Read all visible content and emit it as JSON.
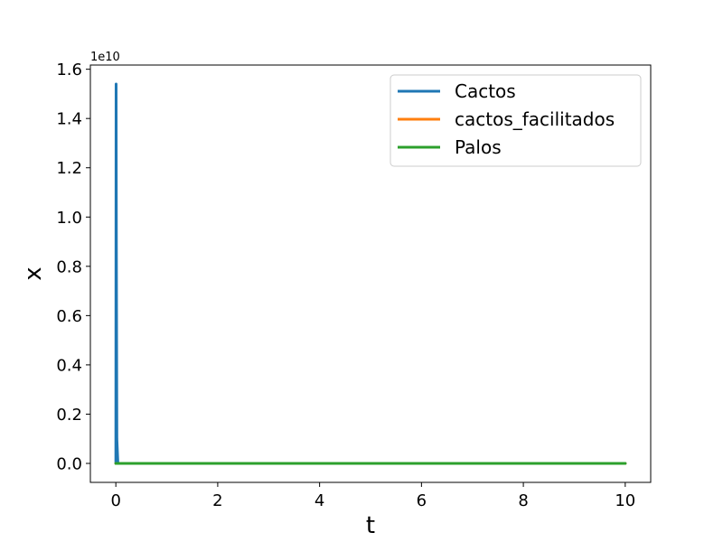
{
  "chart_data": {
    "type": "line",
    "xlabel": "t",
    "ylabel": "x",
    "y_offset_label": "1e10",
    "xlim": [
      -0.5,
      10.5
    ],
    "ylim": [
      -0.077,
      1.617
    ],
    "x_ticks": [
      {
        "value": 0,
        "label": "0"
      },
      {
        "value": 2,
        "label": "2"
      },
      {
        "value": 4,
        "label": "4"
      },
      {
        "value": 6,
        "label": "6"
      },
      {
        "value": 8,
        "label": "8"
      },
      {
        "value": 10,
        "label": "10"
      }
    ],
    "y_ticks": [
      {
        "value": 0.0,
        "label": "0.0"
      },
      {
        "value": 0.2,
        "label": "0.2"
      },
      {
        "value": 0.4,
        "label": "0.4"
      },
      {
        "value": 0.6,
        "label": "0.6"
      },
      {
        "value": 0.8,
        "label": "0.8"
      },
      {
        "value": 1.0,
        "label": "1.0"
      },
      {
        "value": 1.2,
        "label": "1.2"
      },
      {
        "value": 1.4,
        "label": "1.4"
      },
      {
        "value": 1.6,
        "label": "1.6"
      }
    ],
    "legend_position": "top-right",
    "grid": false,
    "series": [
      {
        "name": "Cactos",
        "color": "#1f77b4",
        "x": [
          0,
          0.005,
          0.01,
          0.02,
          0.04,
          10
        ],
        "y": [
          0,
          1.54,
          0.9,
          0.1,
          0,
          0
        ]
      },
      {
        "name": "cactos_facilitados",
        "color": "#ff7f0e",
        "x": [
          0,
          10
        ],
        "y": [
          0,
          0
        ]
      },
      {
        "name": "Palos",
        "color": "#2ca02c",
        "x": [
          0,
          10
        ],
        "y": [
          0,
          0
        ]
      }
    ]
  }
}
